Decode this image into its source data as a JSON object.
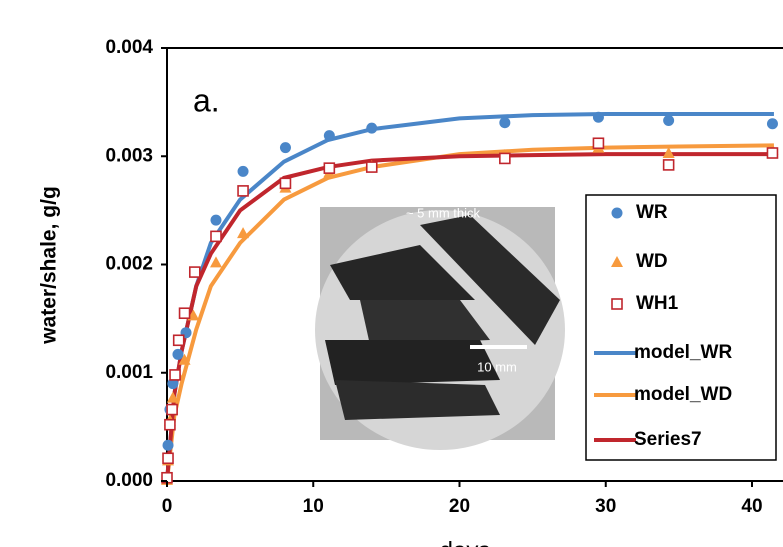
{
  "chart_data": {
    "type": "scatter",
    "annotation": "a.",
    "inset_labels": [
      "~ 5 mm thick",
      "10 mm"
    ],
    "xlabel": "days",
    "ylabel": "water/shale,  g/g",
    "xlim": [
      0,
      42
    ],
    "xticks": [
      0,
      10,
      20,
      30,
      40
    ],
    "ylim": [
      0,
      0.004
    ],
    "yticks": [
      {
        "value": 0,
        "label": "0.000"
      },
      {
        "value": 0.001,
        "label": "0.001"
      },
      {
        "value": 0.002,
        "label": "0.002"
      },
      {
        "value": 0.003,
        "label": "0.003"
      },
      {
        "value": 0.004,
        "label": "0.004"
      }
    ],
    "series": [
      {
        "name": "WR",
        "color": "#4a86c8",
        "mode": "markers",
        "marker": "circle",
        "x": [
          0.07,
          0.2,
          0.4,
          0.75,
          1.3,
          1.9,
          3.35,
          5.2,
          8.1,
          11.1,
          14,
          23.1,
          29.5,
          34.3,
          41.4
        ],
        "values": [
          0.00033,
          0.00066,
          0.0009,
          0.00117,
          0.00137,
          0.00193,
          0.00241,
          0.00286,
          0.00308,
          0.00319,
          0.00326,
          0.00331,
          0.00336,
          0.00333,
          0.0033
        ]
      },
      {
        "name": "WD",
        "color": "#f79a3e",
        "mode": "markers",
        "marker": "triangle",
        "x": [
          0,
          0.07,
          0.2,
          0.4,
          0.75,
          1.2,
          1.8,
          3.35,
          5.2,
          8.1,
          11.1,
          14,
          23.1,
          29.5,
          34.3,
          41.4
        ],
        "values": [
          1e-05,
          0.00019,
          0.00056,
          0.00077,
          0.00098,
          0.00112,
          0.00153,
          0.00202,
          0.00229,
          0.00271,
          0.00285,
          0.00291,
          0.00301,
          0.00308,
          0.00303,
          0.00306
        ]
      },
      {
        "name": "WH1",
        "color": "#c0262d",
        "mode": "markers",
        "marker": "square",
        "x": [
          0,
          0.07,
          0.2,
          0.35,
          0.55,
          0.8,
          1.2,
          1.9,
          3.35,
          5.2,
          8.1,
          11.1,
          14,
          23.1,
          29.5,
          34.3,
          41.4
        ],
        "values": [
          3e-05,
          0.00021,
          0.00052,
          0.00066,
          0.00098,
          0.0013,
          0.00155,
          0.00193,
          0.00226,
          0.00268,
          0.00275,
          0.00289,
          0.0029,
          0.00298,
          0.00312,
          0.00292,
          0.00303
        ]
      },
      {
        "name": "model_WR",
        "color": "#4a86c8",
        "mode": "line",
        "x": [
          0,
          0.5,
          1,
          2,
          3,
          5,
          8,
          11,
          14,
          20,
          25,
          30,
          35,
          41.5
        ],
        "values": [
          0,
          0.0008,
          0.0012,
          0.0018,
          0.0022,
          0.0026,
          0.00295,
          0.00315,
          0.00325,
          0.00335,
          0.00338,
          0.00339,
          0.00339,
          0.00339
        ]
      },
      {
        "name": "model_WD",
        "color": "#f79a3e",
        "mode": "line",
        "x": [
          0,
          0.5,
          1,
          2,
          3,
          5,
          8,
          11,
          14,
          20,
          25,
          30,
          35,
          41.5
        ],
        "values": [
          0,
          0.0006,
          0.0009,
          0.0014,
          0.0018,
          0.0022,
          0.0026,
          0.0028,
          0.0029,
          0.00302,
          0.00306,
          0.00308,
          0.00309,
          0.0031
        ]
      },
      {
        "name": "Series7",
        "color": "#c0262d",
        "mode": "line",
        "x": [
          0,
          0.5,
          1,
          2,
          3,
          5,
          8,
          11,
          14,
          20,
          25,
          30,
          35,
          41.5
        ],
        "values": [
          0,
          0.0008,
          0.0012,
          0.0018,
          0.0021,
          0.0025,
          0.0028,
          0.0029,
          0.00296,
          0.003,
          0.00301,
          0.00302,
          0.00302,
          0.00302
        ]
      }
    ]
  }
}
